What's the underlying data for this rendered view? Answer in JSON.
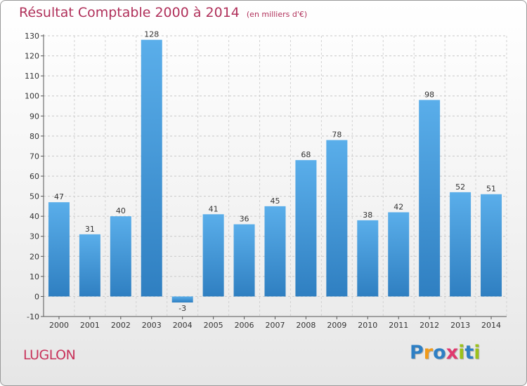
{
  "header": {
    "title": "Résultat Comptable 2000 à 2014",
    "subtitle": "(en milliers d'€)"
  },
  "place_name": "LUGLON",
  "logo": {
    "letters": [
      "P",
      "r",
      "o",
      "x",
      "i",
      "t",
      "i"
    ],
    "colors": [
      "#2e7fc4",
      "#f09a1a",
      "#2e7fc4",
      "#e03a6e",
      "#9cc11c",
      "#2e7fc4",
      "#9cc11c"
    ]
  },
  "colors": {
    "bar_light": "#5aaeea",
    "bar_dark": "#2f7fc1",
    "title": "#b0305a",
    "axis": "#555555"
  },
  "chart_data": {
    "type": "bar",
    "title": "Résultat Comptable 2000 à 2014",
    "subtitle": "(en milliers d'€)",
    "categories": [
      "2000",
      "2001",
      "2002",
      "2003",
      "2004",
      "2005",
      "2006",
      "2007",
      "2008",
      "2009",
      "2010",
      "2011",
      "2012",
      "2013",
      "2014"
    ],
    "values": [
      47,
      31,
      40,
      128,
      -3,
      41,
      36,
      45,
      68,
      78,
      38,
      42,
      98,
      52,
      51
    ],
    "ylim": [
      -10,
      130
    ],
    "yticks": [
      -10,
      0,
      10,
      20,
      30,
      40,
      50,
      60,
      70,
      80,
      90,
      100,
      110,
      120,
      130
    ],
    "grid": true,
    "legend": "none"
  }
}
